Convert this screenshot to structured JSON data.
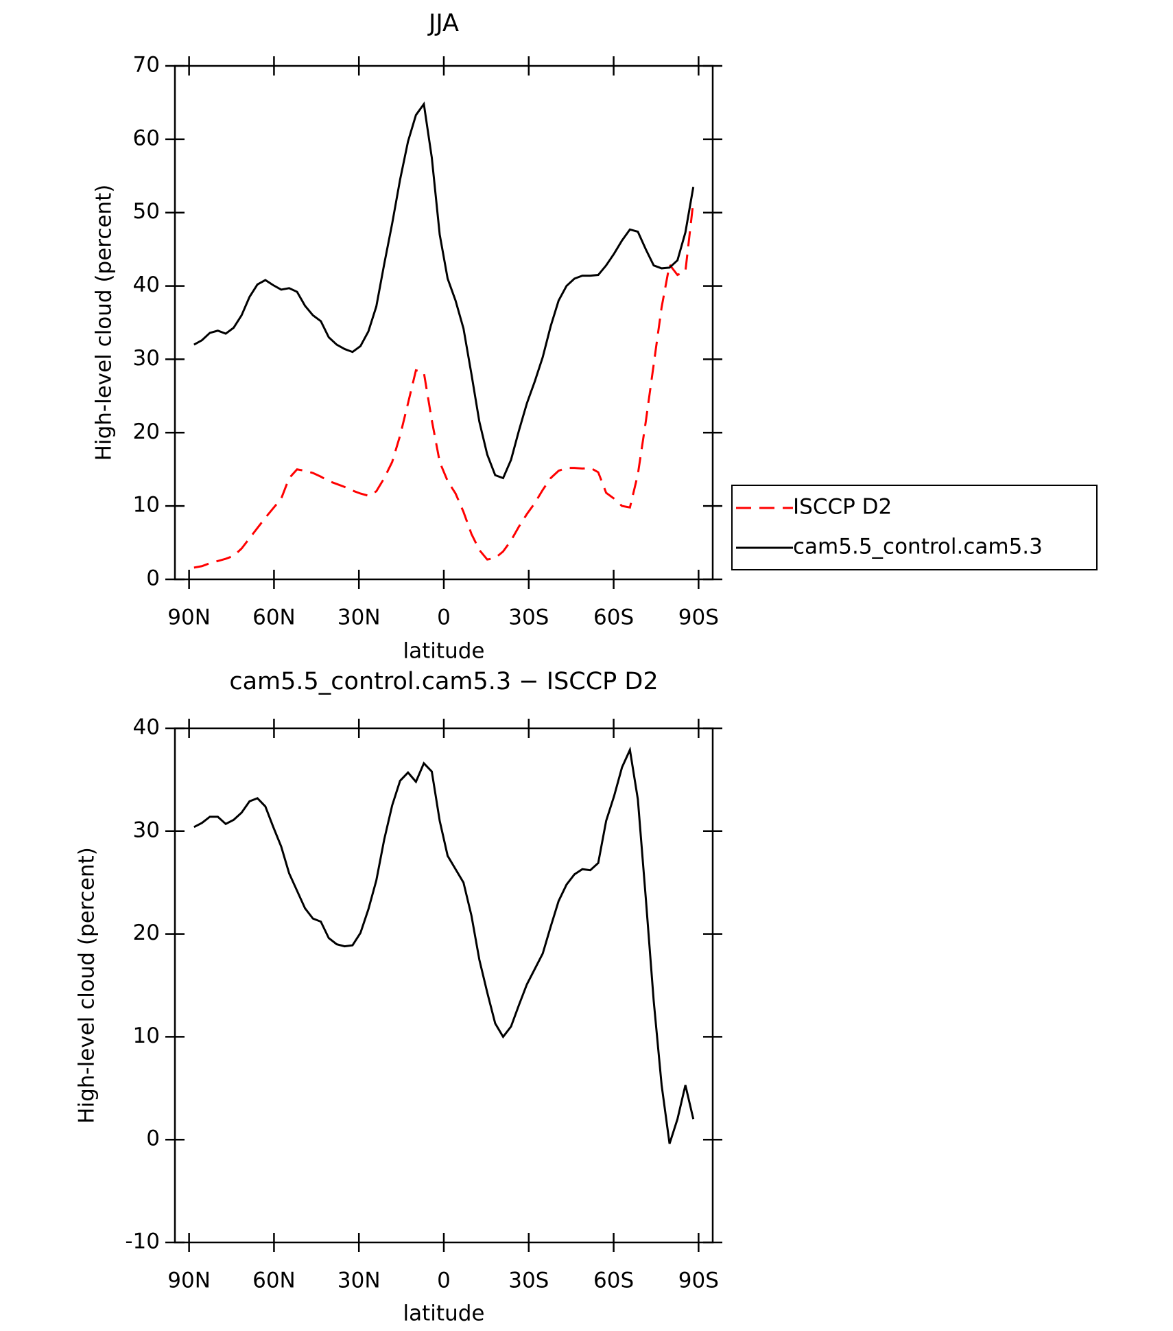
{
  "chart_data": [
    {
      "type": "line",
      "title": "JJA",
      "x_label": "latitude",
      "y_label": "High-level cloud (percent)",
      "x": [
        88.25,
        85.45,
        82.65,
        79.85,
        77.05,
        74.25,
        71.45,
        68.65,
        65.85,
        63.05,
        60.25,
        57.45,
        54.65,
        51.85,
        49.05,
        46.25,
        43.45,
        40.65,
        37.85,
        35.05,
        32.25,
        29.45,
        26.65,
        23.85,
        21.05,
        18.25,
        15.45,
        12.65,
        9.85,
        7.05,
        4.25,
        1.45,
        -1.35,
        -4.15,
        -6.95,
        -9.75,
        -12.55,
        -15.35,
        -18.15,
        -20.95,
        -23.75,
        -26.55,
        -29.35,
        -32.15,
        -34.95,
        -37.75,
        -40.55,
        -43.35,
        -46.15,
        -48.95,
        -51.75,
        -54.55,
        -57.35,
        -60.15,
        -62.95,
        -65.75,
        -68.55,
        -71.35,
        -74.15,
        -76.95,
        -79.75,
        -82.55,
        -85.35,
        -88.15
      ],
      "series": [
        {
          "name": "ISCCP D2",
          "color": "#ff0000",
          "style": "dashed",
          "values": [
            1.6,
            1.8,
            2.2,
            2.5,
            2.8,
            3.2,
            4.2,
            5.6,
            7.0,
            8.4,
            9.7,
            11.0,
            13.8,
            15.0,
            14.8,
            14.5,
            14.0,
            13.4,
            13.0,
            12.6,
            12.1,
            11.7,
            11.4,
            12.0,
            13.8,
            16.0,
            19.6,
            24.0,
            28.5,
            28.2,
            21.7,
            16.0,
            13.4,
            11.7,
            9.2,
            6.2,
            4.0,
            2.7,
            2.9,
            3.8,
            5.3,
            7.2,
            8.9,
            10.4,
            12.2,
            13.8,
            14.8,
            15.2,
            15.2,
            15.1,
            15.2,
            14.6,
            11.8,
            11.0,
            10.0,
            9.8,
            14.3,
            21.5,
            29.3,
            37.1,
            42.9,
            41.5,
            42.0,
            51.5
          ]
        },
        {
          "name": "cam5.5_control.cam5.3",
          "color": "#000000",
          "style": "solid",
          "values": [
            32.0,
            32.6,
            33.6,
            33.9,
            33.5,
            34.3,
            36.0,
            38.5,
            40.2,
            40.8,
            40.1,
            39.5,
            39.7,
            39.2,
            37.3,
            36.0,
            35.2,
            33.0,
            32.0,
            31.4,
            31.0,
            31.8,
            33.8,
            37.2,
            43.0,
            48.5,
            54.5,
            59.7,
            63.3,
            64.8,
            57.5,
            47.0,
            41.0,
            38.0,
            34.2,
            28.0,
            21.5,
            17.0,
            14.2,
            13.8,
            16.3,
            20.3,
            24.0,
            27.0,
            30.3,
            34.5,
            38.0,
            40.0,
            41.0,
            41.4,
            41.4,
            41.5,
            42.8,
            44.4,
            46.2,
            47.7,
            47.4,
            45.0,
            42.8,
            42.4,
            42.5,
            43.5,
            47.3,
            53.5
          ]
        }
      ],
      "xlim": [
        95,
        -95
      ],
      "xticks": [
        {
          "value": 90,
          "label": "90N"
        },
        {
          "value": 60,
          "label": "60N"
        },
        {
          "value": 30,
          "label": "30N"
        },
        0,
        {
          "value": -30,
          "label": "30S"
        },
        {
          "value": -60,
          "label": "60S"
        },
        {
          "value": -90,
          "label": "90S"
        }
      ],
      "ylim": [
        0,
        70
      ],
      "yticks": [
        0,
        10,
        20,
        30,
        40,
        50,
        60,
        70
      ],
      "legend": "outside right"
    },
    {
      "type": "line",
      "title": "cam5.5_control.cam5.3 − ISCCP D2",
      "x_label": "latitude",
      "y_label": "High-level cloud (percent)",
      "x": [
        88.25,
        85.45,
        82.65,
        79.85,
        77.05,
        74.25,
        71.45,
        68.65,
        65.85,
        63.05,
        60.25,
        57.45,
        54.65,
        51.85,
        49.05,
        46.25,
        43.45,
        40.65,
        37.85,
        35.05,
        32.25,
        29.45,
        26.65,
        23.85,
        21.05,
        18.25,
        15.45,
        12.65,
        9.85,
        7.05,
        4.25,
        1.45,
        -1.35,
        -4.15,
        -6.95,
        -9.75,
        -12.55,
        -15.35,
        -18.15,
        -20.95,
        -23.75,
        -26.55,
        -29.35,
        -32.15,
        -34.95,
        -37.75,
        -40.55,
        -43.35,
        -46.15,
        -48.95,
        -51.75,
        -54.55,
        -57.35,
        -60.15,
        -62.95,
        -65.75,
        -68.55,
        -71.35,
        -74.15,
        -76.95,
        -79.75,
        -82.55,
        -85.35,
        -88.15
      ],
      "series": [
        {
          "color": "#000000",
          "style": "solid",
          "values": [
            30.4,
            30.8,
            31.4,
            31.4,
            30.7,
            31.1,
            31.8,
            32.9,
            33.2,
            32.4,
            30.4,
            28.5,
            25.9,
            24.2,
            22.5,
            21.5,
            21.2,
            19.6,
            19.0,
            18.8,
            18.9,
            20.1,
            22.4,
            25.2,
            29.2,
            32.5,
            34.9,
            35.7,
            34.8,
            36.6,
            35.8,
            31.0,
            27.6,
            26.3,
            25.0,
            21.8,
            17.5,
            14.3,
            11.3,
            10.0,
            11.0,
            13.1,
            15.1,
            16.6,
            18.1,
            20.7,
            23.2,
            24.8,
            25.8,
            26.3,
            26.2,
            26.9,
            31.0,
            33.4,
            36.2,
            37.9,
            33.1,
            23.5,
            13.5,
            5.3,
            -0.4,
            2.0,
            5.3,
            2.0
          ]
        }
      ],
      "xlim": [
        95,
        -95
      ],
      "xticks": [
        {
          "value": 90,
          "label": "90N"
        },
        {
          "value": 60,
          "label": "60N"
        },
        {
          "value": 30,
          "label": "30N"
        },
        0,
        {
          "value": -30,
          "label": "30S"
        },
        {
          "value": -60,
          "label": "60S"
        },
        {
          "value": -90,
          "label": "90S"
        }
      ],
      "ylim": [
        -10,
        40
      ],
      "yticks": [
        -10,
        0,
        10,
        20,
        30,
        40
      ]
    }
  ]
}
